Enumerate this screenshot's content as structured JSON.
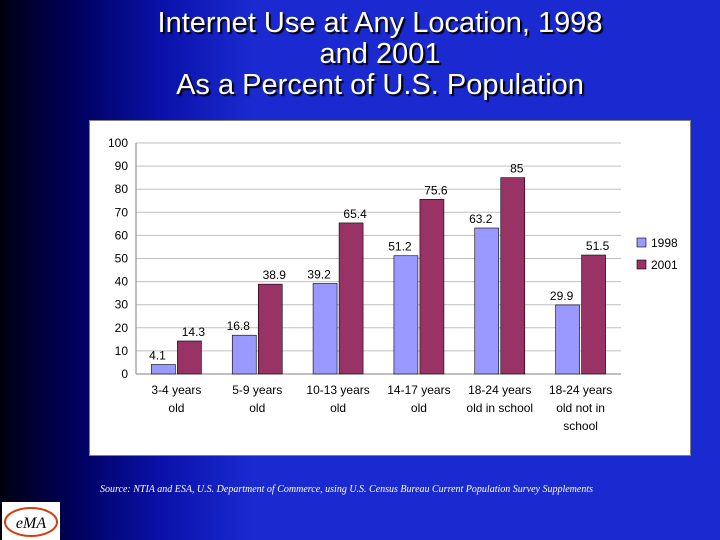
{
  "title_lines": [
    "Internet Use at Any Location, 1998",
    "and 2001",
    "As a Percent of U.S. Population"
  ],
  "source": "Source: NTIA and ESA, U.S. Department of Commerce, using U.S. Census Bureau Current Population Survey Supplements",
  "logo_text": "eMA",
  "colors": {
    "series_1998": "#9999ff",
    "series_2001": "#993366",
    "grid": "#c0c0c0"
  },
  "chart_data": {
    "type": "bar",
    "categories": [
      [
        "3-4 years",
        "old"
      ],
      [
        "5-9 years",
        "old"
      ],
      [
        "10-13 years",
        "old"
      ],
      [
        "14-17 years",
        "old"
      ],
      [
        "18-24 years",
        "old in school"
      ],
      [
        "18-24 years",
        "old not in",
        "school"
      ]
    ],
    "series": [
      {
        "name": "1998",
        "values": [
          4.1,
          16.8,
          39.2,
          51.2,
          63.2,
          29.9
        ],
        "labels": [
          "4.1",
          "16.8",
          "39.2",
          "51.2",
          "63.2",
          "29.9"
        ]
      },
      {
        "name": "2001",
        "values": [
          14.3,
          38.9,
          65.4,
          75.6,
          85,
          51.5
        ],
        "labels": [
          "14.3",
          "38.9",
          "65.4",
          "75.6",
          "85",
          "51.5"
        ]
      }
    ],
    "ylim": [
      0,
      100
    ],
    "yticks": [
      0,
      10,
      20,
      30,
      40,
      50,
      60,
      70,
      80,
      90,
      100
    ],
    "grid": true,
    "legend": "right"
  }
}
